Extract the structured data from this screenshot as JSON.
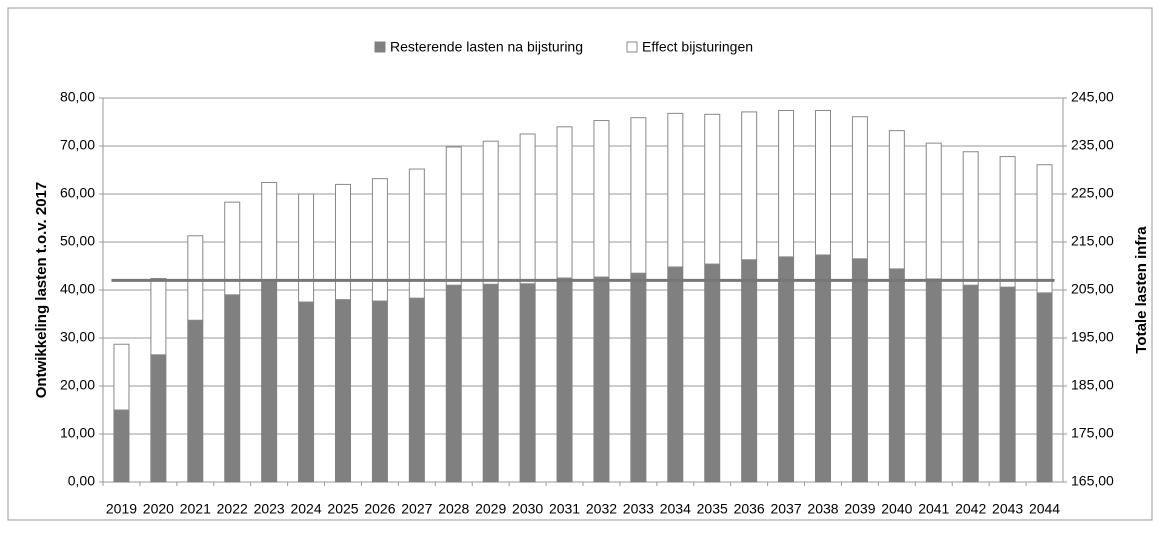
{
  "chart_data": {
    "type": "stacked_bar",
    "ylabel": "Ontwikkeling lasten t.o.v. 2017",
    "y2label": "Totale lasten infra",
    "categories": [
      "2019",
      "2020",
      "2021",
      "2022",
      "2023",
      "2024",
      "2025",
      "2026",
      "2027",
      "2028",
      "2029",
      "2030",
      "2031",
      "2032",
      "2033",
      "2034",
      "2035",
      "2036",
      "2037",
      "2038",
      "2039",
      "2040",
      "2041",
      "2042",
      "2043",
      "2044"
    ],
    "series": [
      {
        "name": "Resterende lasten na bijsturing",
        "color": "#808080",
        "values": [
          15.0,
          26.5,
          33.7,
          39.0,
          41.7,
          37.5,
          38.0,
          37.7,
          38.3,
          41.0,
          41.2,
          41.3,
          42.5,
          42.7,
          43.5,
          44.8,
          45.4,
          46.3,
          46.9,
          47.3,
          46.5,
          44.4,
          42.3,
          41.0,
          40.6,
          39.4
        ]
      },
      {
        "name": "Effect bijsturingen",
        "color": "#ffffff",
        "values": [
          13.7,
          15.9,
          17.6,
          19.3,
          20.7,
          22.5,
          24.0,
          25.5,
          26.9,
          28.8,
          29.8,
          31.2,
          31.5,
          32.6,
          32.4,
          32.0,
          31.2,
          30.8,
          30.5,
          30.1,
          29.6,
          28.8,
          28.3,
          27.8,
          27.2,
          26.7
        ]
      }
    ],
    "hline": {
      "value": 42.0,
      "color": "#777777"
    },
    "ylim": [
      0,
      80
    ],
    "yticks": [
      {
        "value": 0,
        "label": "0,00"
      },
      {
        "value": 10,
        "label": "10,00"
      },
      {
        "value": 20,
        "label": "20,00"
      },
      {
        "value": 30,
        "label": "30,00"
      },
      {
        "value": 40,
        "label": "40,00"
      },
      {
        "value": 50,
        "label": "50,00"
      },
      {
        "value": 60,
        "label": "60,00"
      },
      {
        "value": 70,
        "label": "70,00"
      },
      {
        "value": 80,
        "label": "80,00"
      }
    ],
    "y2lim": [
      165,
      245
    ],
    "y2ticks": [
      {
        "value": 165,
        "label": "165,00"
      },
      {
        "value": 175,
        "label": "175,00"
      },
      {
        "value": 185,
        "label": "185,00"
      },
      {
        "value": 195,
        "label": "195,00"
      },
      {
        "value": 205,
        "label": "205,00"
      },
      {
        "value": 215,
        "label": "215,00"
      },
      {
        "value": 225,
        "label": "225,00"
      },
      {
        "value": 235,
        "label": "235,00"
      },
      {
        "value": 245,
        "label": "245,00"
      }
    ],
    "grid": true
  }
}
